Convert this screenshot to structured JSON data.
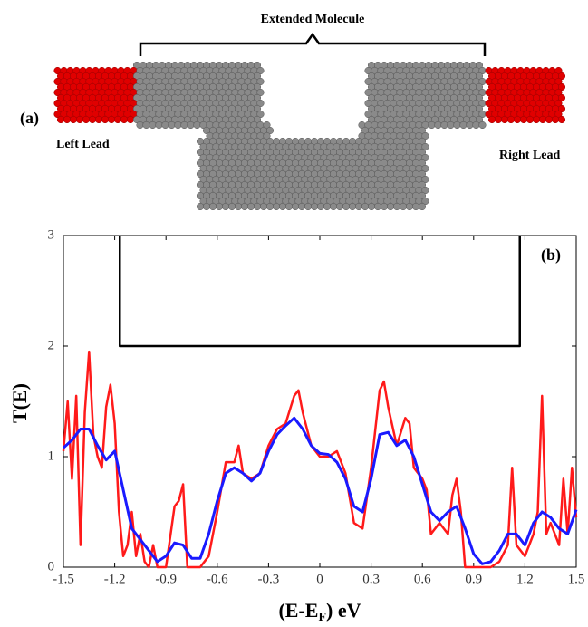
{
  "annotations": {
    "extended_molecule": "Extended Molecule",
    "panel_a": "(a)",
    "left_lead": "Left Lead",
    "right_lead": "Right Lead"
  },
  "chart_data": {
    "type": "line",
    "panel_label": "(b)",
    "y_label": "T(E)",
    "x_label": {
      "main": "(E-E",
      "sub": "F",
      "tail": ") eV"
    },
    "xlim": [
      -1.5,
      1.5
    ],
    "xticks": [
      -1.5,
      -1.2,
      -0.9,
      -0.6,
      -0.3,
      0,
      0.3,
      0.6,
      0.9,
      1.2,
      1.5
    ],
    "ylim": [
      0,
      3
    ],
    "yticks": [
      0,
      1,
      2,
      3
    ],
    "series": [
      {
        "color": "#ff1a1a",
        "x": [
          -1.5,
          -1.475,
          -1.45,
          -1.425,
          -1.4,
          -1.375,
          -1.35,
          -1.325,
          -1.3,
          -1.275,
          -1.25,
          -1.225,
          -1.2,
          -1.175,
          -1.15,
          -1.125,
          -1.1,
          -1.075,
          -1.05,
          -1.025,
          -1.0,
          -0.975,
          -0.95,
          -0.9,
          -0.85,
          -0.825,
          -0.8,
          -0.775,
          -0.75,
          -0.7,
          -0.65,
          -0.6,
          -0.55,
          -0.5,
          -0.475,
          -0.45,
          -0.4,
          -0.35,
          -0.3,
          -0.25,
          -0.2,
          -0.15,
          -0.125,
          -0.1,
          -0.05,
          0,
          0.05,
          0.1,
          0.15,
          0.2,
          0.25,
          0.3,
          0.35,
          0.375,
          0.4,
          0.45,
          0.5,
          0.525,
          0.55,
          0.6,
          0.625,
          0.65,
          0.7,
          0.75,
          0.775,
          0.8,
          0.825,
          0.85,
          0.9,
          0.95,
          1.0,
          1.05,
          1.1,
          1.125,
          1.15,
          1.2,
          1.25,
          1.275,
          1.3,
          1.325,
          1.35,
          1.4,
          1.425,
          1.45,
          1.475,
          1.5
        ],
        "values": [
          1.05,
          1.5,
          0.8,
          1.55,
          0.2,
          1.4,
          1.95,
          1.2,
          1.0,
          0.9,
          1.45,
          1.65,
          1.3,
          0.5,
          0.1,
          0.2,
          0.5,
          0.1,
          0.3,
          0.05,
          0.0,
          0.2,
          0.0,
          0.0,
          0.55,
          0.6,
          0.75,
          0.0,
          0.0,
          0.0,
          0.1,
          0.5,
          0.95,
          0.95,
          1.1,
          0.85,
          0.8,
          0.85,
          1.1,
          1.25,
          1.3,
          1.55,
          1.6,
          1.4,
          1.1,
          1.0,
          1.0,
          1.05,
          0.85,
          0.4,
          0.35,
          0.9,
          1.6,
          1.68,
          1.45,
          1.1,
          1.35,
          1.3,
          0.9,
          0.8,
          0.7,
          0.3,
          0.4,
          0.3,
          0.65,
          0.8,
          0.5,
          0.0,
          0.0,
          0.0,
          0.0,
          0.05,
          0.2,
          0.9,
          0.2,
          0.1,
          0.3,
          0.5,
          1.55,
          0.3,
          0.4,
          0.2,
          0.8,
          0.3,
          0.9,
          0.45
        ]
      },
      {
        "color": "#1a1aff",
        "x": [
          -1.5,
          -1.45,
          -1.4,
          -1.35,
          -1.3,
          -1.25,
          -1.2,
          -1.15,
          -1.1,
          -1.05,
          -1.0,
          -0.95,
          -0.9,
          -0.85,
          -0.8,
          -0.75,
          -0.7,
          -0.65,
          -0.6,
          -0.55,
          -0.5,
          -0.45,
          -0.4,
          -0.35,
          -0.3,
          -0.25,
          -0.2,
          -0.15,
          -0.1,
          -0.05,
          0,
          0.05,
          0.1,
          0.15,
          0.2,
          0.25,
          0.3,
          0.35,
          0.4,
          0.45,
          0.5,
          0.55,
          0.6,
          0.65,
          0.7,
          0.75,
          0.8,
          0.85,
          0.9,
          0.95,
          1.0,
          1.05,
          1.1,
          1.15,
          1.2,
          1.25,
          1.3,
          1.35,
          1.4,
          1.45,
          1.5
        ],
        "values": [
          1.08,
          1.15,
          1.25,
          1.25,
          1.1,
          0.97,
          1.05,
          0.7,
          0.35,
          0.25,
          0.15,
          0.05,
          0.1,
          0.22,
          0.2,
          0.08,
          0.08,
          0.3,
          0.6,
          0.85,
          0.9,
          0.85,
          0.78,
          0.85,
          1.05,
          1.2,
          1.28,
          1.35,
          1.25,
          1.1,
          1.03,
          1.02,
          0.95,
          0.8,
          0.55,
          0.5,
          0.8,
          1.2,
          1.22,
          1.1,
          1.15,
          1.0,
          0.75,
          0.5,
          0.42,
          0.5,
          0.55,
          0.35,
          0.12,
          0.03,
          0.05,
          0.15,
          0.3,
          0.3,
          0.2,
          0.4,
          0.5,
          0.45,
          0.35,
          0.3,
          0.52
        ]
      },
      {
        "color": "#000000",
        "x": [
          -1.17,
          -1.17,
          1.17,
          1.17
        ],
        "values": [
          3,
          2,
          2,
          3
        ]
      }
    ]
  }
}
